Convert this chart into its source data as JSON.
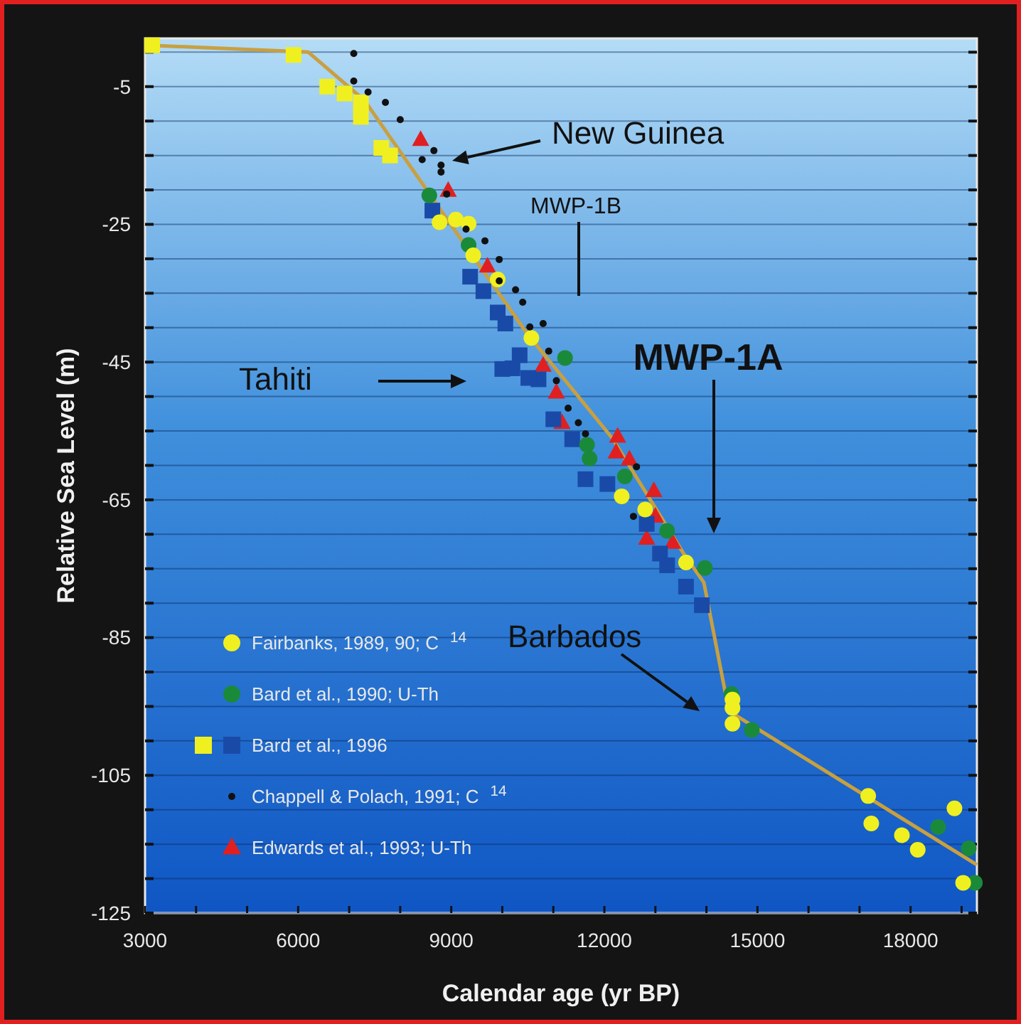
{
  "chart_data": {
    "type": "scatter",
    "xlabel": "Calendar age  (yr BP)",
    "ylabel": "Relative Sea Level  (m)",
    "xlim": [
      3000,
      19300
    ],
    "ylim": [
      -125,
      2
    ],
    "xticks": [
      3000,
      {
        "value": 4000,
        "label": null
      },
      {
        "value": 5000,
        "label": null
      },
      6000,
      {
        "value": 7000,
        "label": null
      },
      {
        "value": 8000,
        "label": null
      },
      9000,
      {
        "value": 10000,
        "label": null
      },
      {
        "value": 11000,
        "label": null
      },
      12000,
      {
        "value": 13000,
        "label": null
      },
      {
        "value": 14000,
        "label": null
      },
      15000,
      {
        "value": 16000,
        "label": null
      },
      {
        "value": 17000,
        "label": null
      },
      18000,
      {
        "value": 19000,
        "label": null
      }
    ],
    "yticks": [
      {
        "value": 0,
        "label": null
      },
      -5,
      {
        "value": -10,
        "label": null
      },
      {
        "value": -15,
        "label": null
      },
      {
        "value": -20,
        "label": null
      },
      -25,
      {
        "value": -30,
        "label": null
      },
      {
        "value": -35,
        "label": null
      },
      {
        "value": -40,
        "label": null
      },
      -45,
      {
        "value": -50,
        "label": null
      },
      {
        "value": -55,
        "label": null
      },
      {
        "value": -60,
        "label": null
      },
      -65,
      {
        "value": -70,
        "label": null
      },
      {
        "value": -75,
        "label": null
      },
      {
        "value": -80,
        "label": null
      },
      -85,
      {
        "value": -90,
        "label": null
      },
      {
        "value": -95,
        "label": null
      },
      {
        "value": -100,
        "label": null
      },
      -105,
      {
        "value": -110,
        "label": null
      },
      {
        "value": -115,
        "label": null
      },
      {
        "value": -120,
        "label": null
      },
      -125
    ],
    "grid": "y",
    "legend": "bottom left",
    "series": [
      {
        "type": "line",
        "color": "#c8a040",
        "marker": "none",
        "x": [
          3100,
          6200,
          7300,
          8800,
          10500,
          12150,
          13570,
          13950,
          14370,
          14510,
          19300
        ],
        "values": [
          1,
          0,
          -7,
          -23,
          -41,
          -56,
          -73,
          -77,
          -93,
          -96,
          -118
        ]
      },
      {
        "name": "Fairbanks, 1989, 90; C$^{14}$",
        "color": "#f0f020",
        "marker": "circle",
        "x": [
          8770,
          9090,
          9340,
          9430,
          9910,
          10570,
          12340,
          12800,
          13600,
          14510,
          14510,
          14510,
          17170,
          17230,
          17830,
          18140,
          18860,
          19030
        ],
        "values": [
          -24.7,
          -24.3,
          -24.9,
          -29.5,
          -33,
          -41.5,
          -64.5,
          -66.4,
          -74.1,
          -94,
          -95.2,
          -97.5,
          -108,
          -112,
          -113.7,
          -115.8,
          -109.8,
          -120.6
        ]
      },
      {
        "name": "Bard et al., 1990; U-Th",
        "color": "#1a8a3a",
        "marker": "circle",
        "x": [
          8570,
          9340,
          11230,
          11660,
          11710,
          12400,
          13230,
          13970,
          14490,
          14890,
          18540,
          19140,
          19260
        ],
        "values": [
          -20.8,
          -28,
          -44.4,
          -57,
          -59,
          -61.6,
          -69.5,
          -74.9,
          -93.2,
          -98.4,
          -112.5,
          -115.6,
          -120.6
        ]
      },
      {
        "name": "Bard et al., 1996",
        "marker": "square",
        "colors": [
          "#f0f020",
          "#f0f020",
          "#f0f020",
          "#f0f020",
          "#f0f020",
          "#f0f020",
          "#f0f020",
          "#f0f020",
          "#1a4aa8",
          "#1a4aa8",
          "#1a4aa8",
          "#1a4aa8",
          "#1a4aa8",
          "#1a4aa8",
          "#1a4aa8",
          "#1a4aa8",
          "#1a4aa8",
          "#1a4aa8",
          "#1a4aa8",
          "#1a4aa8",
          "#1a4aa8",
          "#1a4aa8",
          "#1a4aa8",
          "#1a4aa8",
          "#1a4aa8",
          "#1a4aa8",
          "#1a4aa8"
        ],
        "x": [
          3140,
          5910,
          6570,
          6910,
          7230,
          7230,
          7630,
          7800,
          8630,
          9370,
          9630,
          9910,
          10060,
          10340,
          10200,
          10710,
          11000,
          11370,
          10000,
          10510,
          11630,
          12060,
          12830,
          13090,
          13230,
          13600,
          13910
        ],
        "values": [
          1,
          -0.4,
          -5,
          -6,
          -7.3,
          -9.4,
          -13.9,
          -15,
          -23,
          -32.6,
          -34.7,
          -37.8,
          -39.4,
          -44,
          -45.9,
          -47.5,
          -53.3,
          -56.2,
          -46,
          -47.3,
          -62,
          -62.7,
          -68.5,
          -72.8,
          -74.5,
          -77.6,
          -80.3
        ]
      },
      {
        "name": "Chappell & Polach, 1991; C$^{14}$",
        "color": "#111111",
        "marker": "circle",
        "x": [
          7090,
          7090,
          7370,
          7710,
          8000,
          8430,
          8660,
          8800,
          8800,
          8910,
          9290,
          9660,
          9940,
          9940,
          10260,
          10400,
          10540,
          10800,
          10910,
          11060,
          11290,
          11490,
          11630,
          12630,
          12570
        ],
        "values": [
          -0.2,
          -4.2,
          -5.8,
          -7.3,
          -9.8,
          -15.6,
          -14.3,
          -16.4,
          -17.4,
          -20.6,
          -25.7,
          -27.4,
          -30.1,
          -33.2,
          -34.5,
          -36.3,
          -39.9,
          -39.4,
          -43.4,
          -47.7,
          -51.7,
          -53.8,
          -55.4,
          -60.2,
          -67.4
        ]
      },
      {
        "name": "Edwards et al., 1993; U-Th",
        "color": "#e02020",
        "marker": "triangle",
        "x": [
          8400,
          8940,
          9710,
          10800,
          11060,
          11170,
          12260,
          12230,
          12490,
          12970,
          13000,
          12830,
          13340
        ],
        "values": [
          -12.7,
          -20.1,
          -31.1,
          -45.5,
          -49.4,
          -53.8,
          -55.8,
          -58.1,
          -59.1,
          -63.7,
          -67.4,
          -70.6,
          -71.2
        ]
      }
    ],
    "annotations": [
      "New Guinea",
      "MWP-1B",
      "Tahiti",
      "MWP-1A",
      "Barbados"
    ]
  }
}
